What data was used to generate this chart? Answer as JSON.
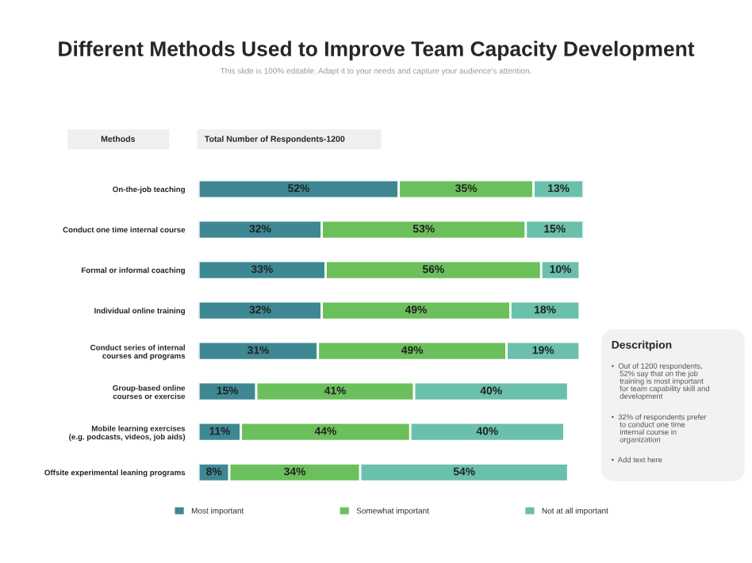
{
  "chart_data": {
    "type": "bar",
    "orientation": "horizontal",
    "stacked": true,
    "legend": "bottom",
    "grid": false,
    "tick_labels": "y",
    "title": "Different Methods Used to Improve Team Capacity Development",
    "subtitle": "This slide is 100% editable. Adapt it to your needs and capture your audience's attention.",
    "categories": [
      "On-the-job teaching",
      "Conduct one time internal course",
      "Formal or informal coaching",
      "Individual online training",
      "Conduct series of internal\ncourses and programs",
      "Group-based online\ncourses or exercise",
      "Mobile learning exercises\n(e.g. podcasts, videos, job aids)",
      "Offsite experimental leaning programs"
    ],
    "series": [
      {
        "name": "Most important",
        "color": "#3e8893",
        "values": [
          52,
          32,
          33,
          32,
          31,
          15,
          11,
          8
        ],
        "value_labels": [
          "52%",
          "32%",
          "33%",
          "32%",
          "31%",
          "15%",
          "11%",
          "8%"
        ]
      },
      {
        "name": "Somewhat important",
        "color": "#6cc05c",
        "values": [
          35,
          53,
          56,
          49,
          49,
          41,
          44,
          34
        ],
        "value_labels": [
          "35%",
          "53%",
          "56%",
          "49%",
          "49%",
          "41%",
          "44%",
          "34%"
        ]
      },
      {
        "name": "Not at all important",
        "color": "#6bc0ab",
        "values": [
          13,
          15,
          10,
          18,
          19,
          40,
          40,
          54
        ],
        "value_labels": [
          "13%",
          "15%",
          "10%",
          "18%",
          "19%",
          "40%",
          "40%",
          "54%"
        ]
      }
    ],
    "annotations": [
      "Methods",
      "Total Number of Respondents-1200",
      "Descritpion",
      "•  Out of 1200 respondents,\n    52% say that on the job\n    training is most important\n    for team capability skill and\n    development",
      "•  32% of respondents prefer\n    to conduct one time\n    internal course in\n    organization",
      "•  Add text here"
    ]
  }
}
